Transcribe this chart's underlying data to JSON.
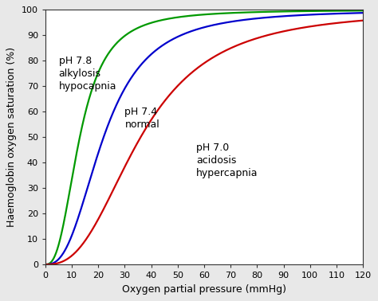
{
  "title": "",
  "xlabel": "Oxygen partial pressure (mmHg)",
  "ylabel": "Haemoglobin oxygen saturation (%)",
  "xlim": [
    0,
    120
  ],
  "ylim": [
    0,
    100
  ],
  "xticks": [
    0,
    10,
    20,
    30,
    40,
    50,
    60,
    70,
    80,
    90,
    100,
    110,
    120
  ],
  "yticks": [
    0,
    10,
    20,
    30,
    40,
    50,
    60,
    70,
    80,
    90,
    100
  ],
  "curves": [
    {
      "label": "pH 7.8\nalkylosis\nhypocapnia",
      "color": "#009900",
      "n": 2.6,
      "p50": 13.0,
      "ann_x": 5,
      "ann_y": 82
    },
    {
      "label": "pH 7.4\nnormal",
      "color": "#0000cc",
      "n": 2.6,
      "p50": 22.0,
      "ann_x": 30,
      "ann_y": 62
    },
    {
      "label": "pH 7.0\nacidosis\nhypercapnia",
      "color": "#cc0000",
      "n": 2.6,
      "p50": 36.0,
      "ann_x": 57,
      "ann_y": 48
    }
  ],
  "bg_color": "#e8e8e8",
  "plot_bg_color": "#ffffff",
  "font_size": 9,
  "label_font_size": 9,
  "tick_font_size": 8,
  "line_width": 1.6
}
